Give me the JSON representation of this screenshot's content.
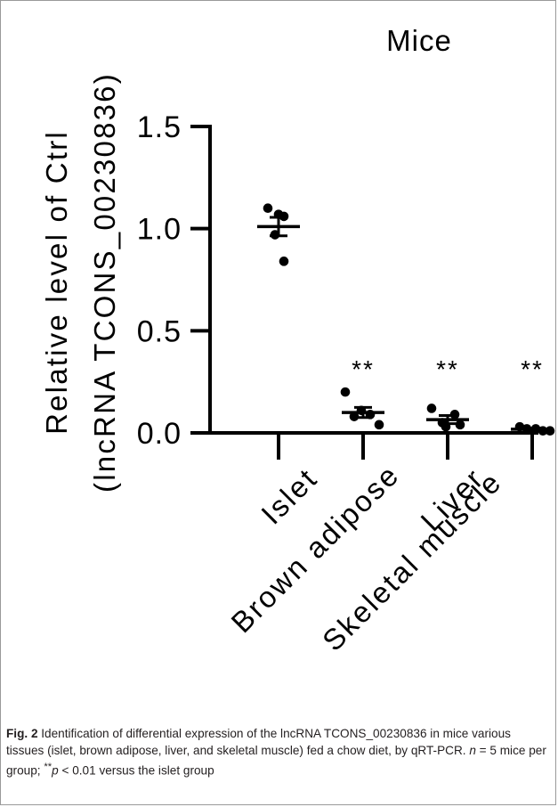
{
  "chart_data": {
    "type": "scatter",
    "title": "Mice",
    "ylabel_line1": "Relative level of Ctrl",
    "ylabel_line2": "(lncRNA TCONS_00230836)",
    "ylim": [
      0,
      1.5
    ],
    "yticks": [
      "0.0",
      "0.5",
      "1.0",
      "1.5"
    ],
    "categories": [
      "Islet",
      "Brown adipose",
      "Liver",
      "Skeletal muscle"
    ],
    "groups": [
      {
        "name": "Islet",
        "points": [
          1.1,
          1.07,
          1.06,
          0.97,
          0.84
        ],
        "mean": 1.01,
        "sem": 0.045,
        "significance": ""
      },
      {
        "name": "Brown adipose",
        "points": [
          0.2,
          0.11,
          0.09,
          0.08,
          0.04
        ],
        "mean": 0.1,
        "sem": 0.025,
        "significance": "**"
      },
      {
        "name": "Liver",
        "points": [
          0.12,
          0.09,
          0.05,
          0.04,
          0.03
        ],
        "mean": 0.065,
        "sem": 0.02,
        "significance": "**"
      },
      {
        "name": "Skeletal muscle",
        "points": [
          0.03,
          0.02,
          0.02,
          0.01,
          0.01
        ],
        "mean": 0.018,
        "sem": 0.004,
        "significance": "**"
      }
    ],
    "grid": false,
    "legend": "none"
  },
  "caption": {
    "fig_label": "Fig. 2",
    "text_part1": " Identification of differential expression of the lncRNA TCONS_00230836 in mice various tissues (islet, brown adipose, liver, and skeletal muscle) fed a chow diet, by qRT-PCR. ",
    "n_symbol": "n",
    "text_part2": " = 5 mice per group; ",
    "sig_mark": "**",
    "p_symbol": "p",
    "text_part3": " < 0.01 versus the islet group"
  }
}
